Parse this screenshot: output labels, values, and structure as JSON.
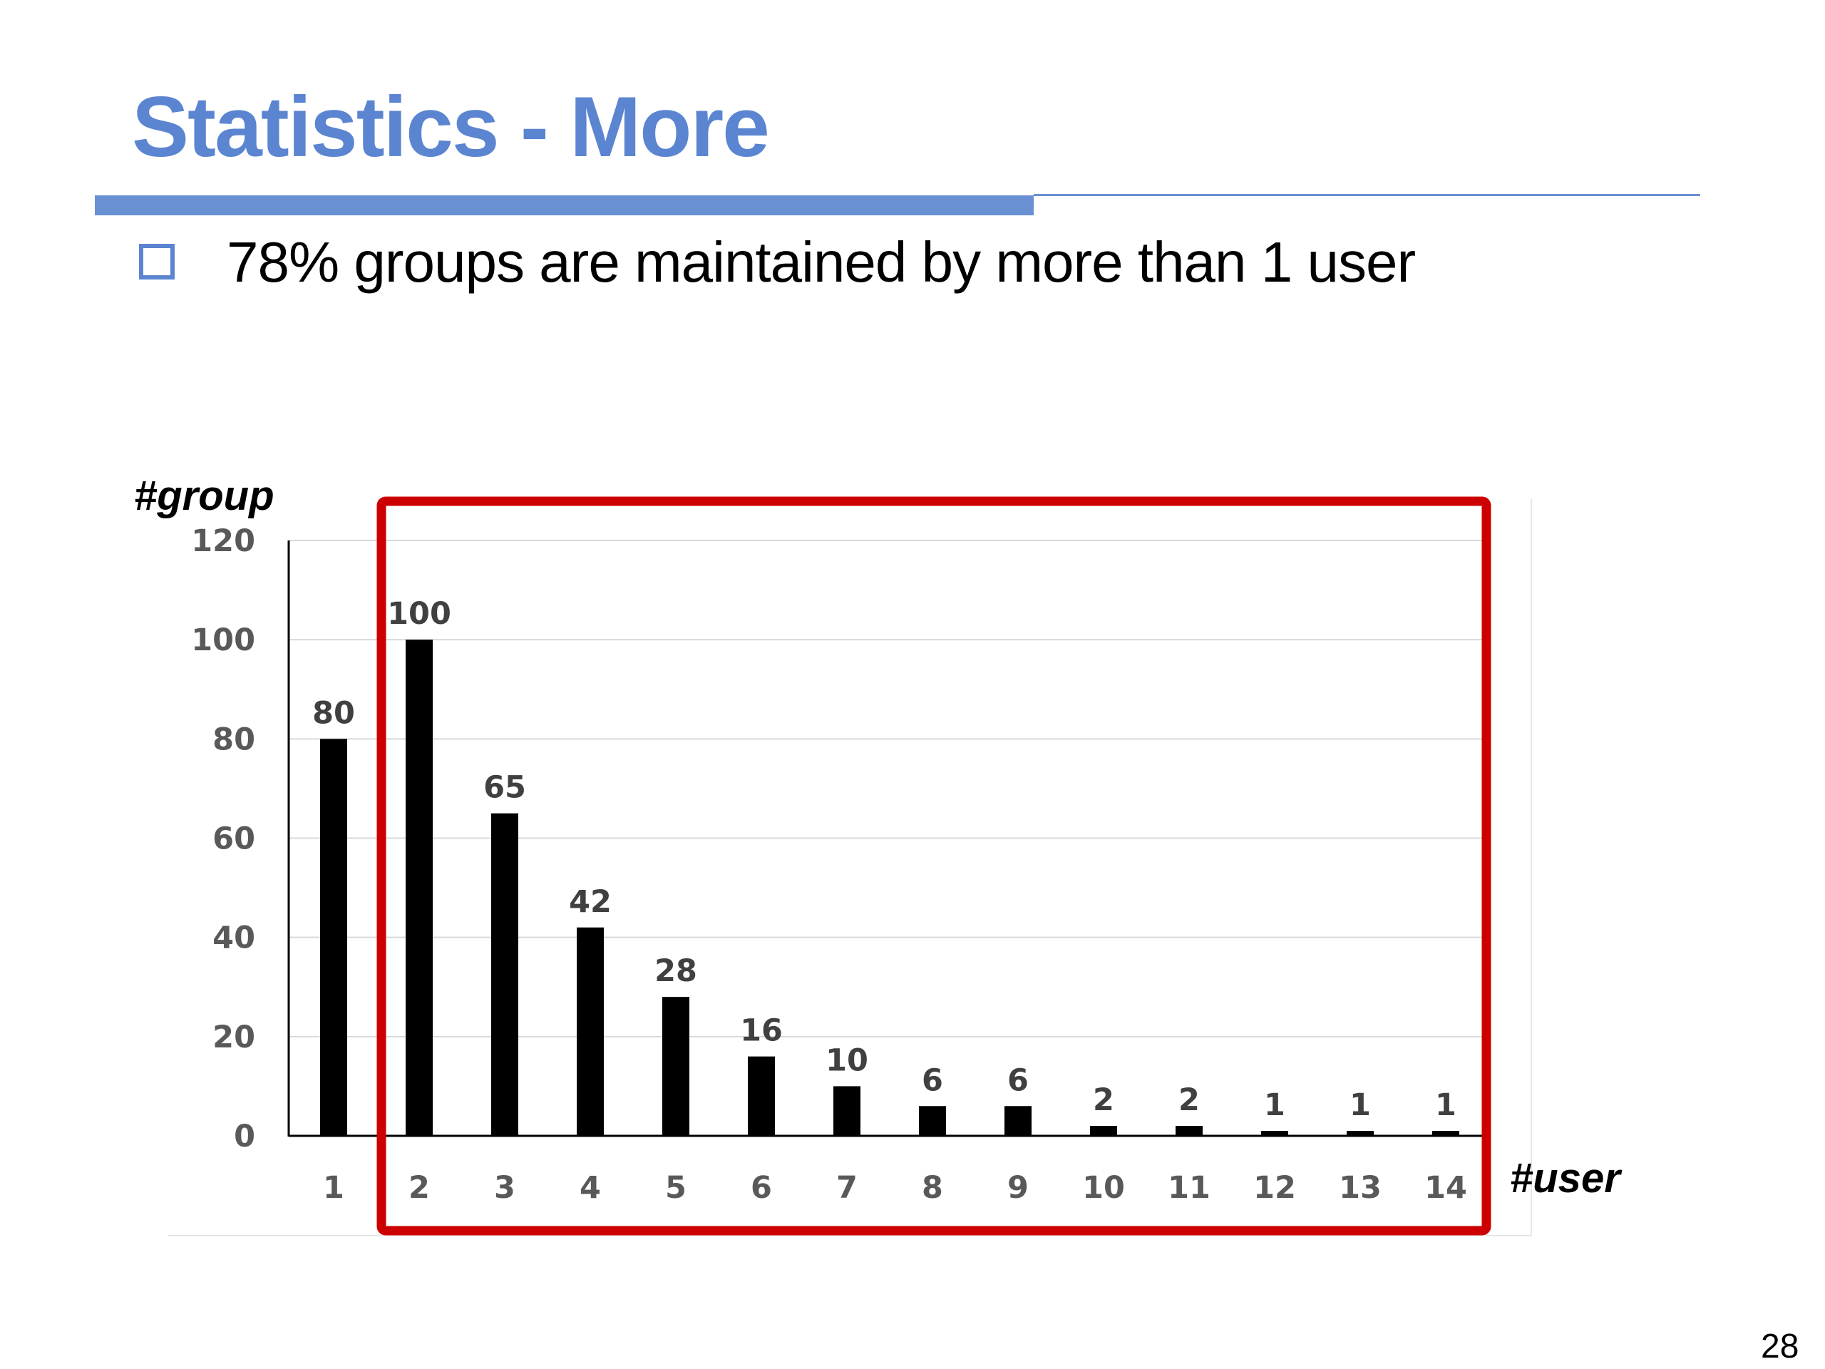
{
  "slide": {
    "title": "Statistics - More",
    "bullet_text": "78% groups are maintained by more than 1 user",
    "page_number": "28"
  },
  "colors": {
    "title": "#5b85d0",
    "rule": "#6a90d4",
    "bar": "#000000",
    "highlight_box": "#cc0000",
    "gridline": "#d9d9d9",
    "tick_text": "#595959"
  },
  "chart_data": {
    "type": "bar",
    "title": "",
    "xlabel": "#user",
    "ylabel": "#group",
    "categories": [
      "1",
      "2",
      "3",
      "4",
      "5",
      "6",
      "7",
      "8",
      "9",
      "10",
      "11",
      "12",
      "13",
      "14"
    ],
    "values": [
      80,
      100,
      65,
      42,
      28,
      16,
      10,
      6,
      6,
      2,
      2,
      1,
      1,
      1
    ],
    "ylim": [
      0,
      120
    ],
    "yticks": [
      0,
      20,
      40,
      60,
      80,
      100,
      120
    ],
    "grid": true,
    "data_labels": true,
    "legend": "none",
    "highlight": {
      "type": "box",
      "color": "#cc0000",
      "categories": [
        "2",
        "3",
        "4",
        "5",
        "6",
        "7",
        "8",
        "9",
        "10",
        "11",
        "12",
        "13",
        "14"
      ]
    }
  }
}
